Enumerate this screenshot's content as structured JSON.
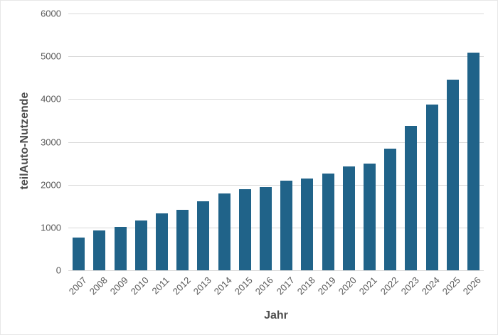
{
  "chart_data": {
    "type": "bar",
    "title": "",
    "xlabel": "Jahr",
    "ylabel": "teilAuto-Nutzende",
    "categories": [
      "2007",
      "2008",
      "2009",
      "2010",
      "2011",
      "2012",
      "2013",
      "2014",
      "2015",
      "2016",
      "2017",
      "2018",
      "2019",
      "2020",
      "2021",
      "2022",
      "2023",
      "2024",
      "2025",
      "2026"
    ],
    "values": [
      760,
      930,
      1020,
      1160,
      1330,
      1410,
      1620,
      1800,
      1890,
      1940,
      2090,
      2140,
      2260,
      2420,
      2490,
      2840,
      3370,
      3870,
      4460,
      5090
    ],
    "ylim": [
      0,
      6000
    ],
    "yticks": [
      0,
      1000,
      2000,
      3000,
      4000,
      5000,
      6000
    ],
    "grid": true,
    "legend_position": "none"
  },
  "colors": {
    "bar": "#206389",
    "gridline": "#d9d9d9",
    "axis_text": "#595959",
    "axis_title": "#4d4d4d",
    "background": "#ffffff"
  }
}
